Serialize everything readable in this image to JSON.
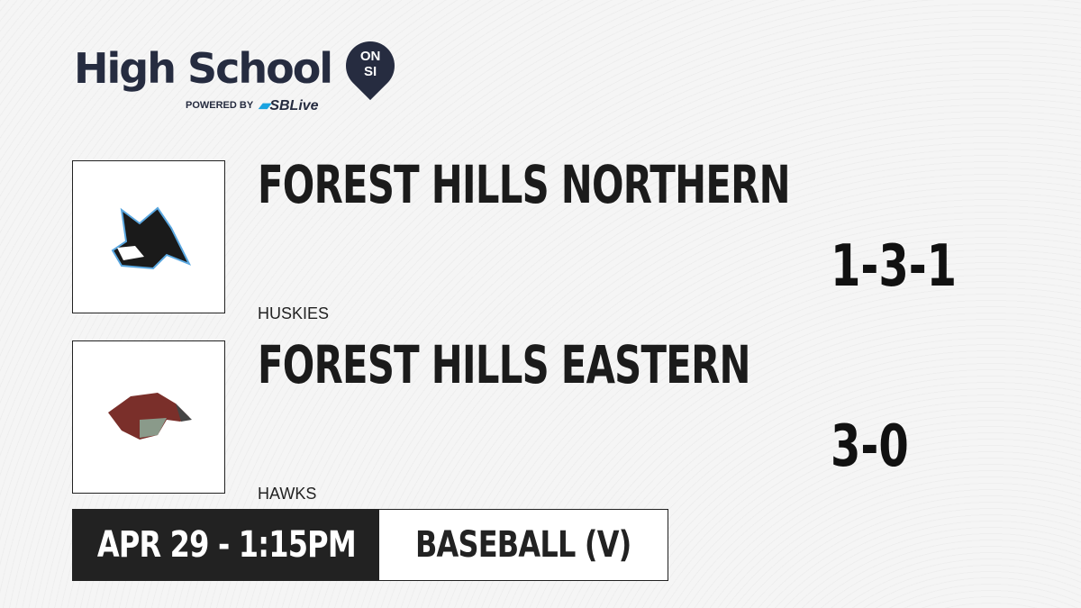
{
  "brand": {
    "title": "High School",
    "badge_top": "ON",
    "badge_bottom": "SI",
    "powered_by": "POWERED BY",
    "partner": "SBLive"
  },
  "teams": [
    {
      "name": "FOREST HILLS NORTHERN",
      "mascot": "HUSKIES",
      "record": "1-3-1"
    },
    {
      "name": "FOREST HILLS EASTERN",
      "mascot": "HAWKS",
      "record": "3-0"
    }
  ],
  "game": {
    "datetime": "APR 29 - 1:15PM",
    "sport": "BASEBALL (V)"
  },
  "colors": {
    "brand": "#262c40",
    "accent": "#1aa3e0",
    "dark": "#222222"
  }
}
